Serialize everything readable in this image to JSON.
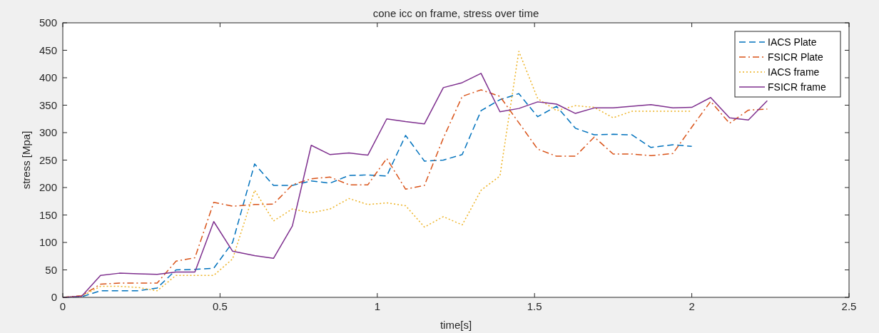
{
  "chart_data": {
    "type": "line",
    "title": "cone icc on frame, stress over time",
    "xlabel": "time[s]",
    "ylabel": "stress [Mpa]",
    "x": [
      0,
      0.06,
      0.12,
      0.18,
      0.24,
      0.3,
      0.36,
      0.42,
      0.48,
      0.54,
      0.61,
      0.67,
      0.73,
      0.79,
      0.85,
      0.91,
      0.97,
      1.03,
      1.09,
      1.15,
      1.21,
      1.27,
      1.33,
      1.39,
      1.45,
      1.51,
      1.57,
      1.63,
      1.69,
      1.75,
      1.81,
      1.87,
      1.94,
      2.0,
      2.06,
      2.12,
      2.18,
      2.24
    ],
    "series": [
      {
        "name": "IACS Plate",
        "color": "#0072bd",
        "line_style": "dashed",
        "values": [
          0,
          1,
          12,
          12,
          12,
          17,
          50,
          51,
          53,
          100,
          243,
          204,
          204,
          212,
          208,
          222,
          223,
          221,
          295,
          248,
          250,
          260,
          340,
          360,
          371,
          329,
          348,
          308,
          296,
          297,
          296,
          273,
          278,
          275,
          null,
          null,
          null,
          null
        ]
      },
      {
        "name": "FSICR Plate",
        "color": "#d95319",
        "line_style": "dashdot",
        "values": [
          0,
          3,
          24,
          26,
          26,
          26,
          66,
          72,
          173,
          166,
          169,
          170,
          205,
          216,
          219,
          205,
          205,
          253,
          197,
          204,
          290,
          366,
          378,
          366,
          318,
          270,
          257,
          257,
          292,
          261,
          261,
          258,
          262,
          310,
          357,
          317,
          341,
          343
        ]
      },
      {
        "name": "IACS frame",
        "color": "#edb120",
        "line_style": "dotted",
        "values": [
          0,
          2,
          20,
          20,
          18,
          12,
          40,
          40,
          40,
          70,
          195,
          139,
          161,
          154,
          161,
          180,
          169,
          172,
          167,
          128,
          147,
          132,
          195,
          221,
          448,
          362,
          340,
          349,
          346,
          327,
          339,
          339,
          339,
          339,
          null,
          null,
          null,
          null
        ]
      },
      {
        "name": "FSICR frame",
        "color": "#7e2f8e",
        "line_style": "solid",
        "values": [
          0,
          2,
          40,
          44,
          43,
          42,
          46,
          46,
          138,
          84,
          76,
          71,
          130,
          277,
          260,
          263,
          259,
          325,
          320,
          316,
          382,
          391,
          408,
          338,
          344,
          356,
          352,
          335,
          345,
          345,
          348,
          351,
          345,
          346,
          364,
          327,
          323,
          358
        ]
      }
    ],
    "xlim": [
      0,
      2.5
    ],
    "xticks": [
      0,
      0.5,
      1,
      1.5,
      2,
      2.5
    ],
    "ylim": [
      0,
      500
    ],
    "yticks": [
      0,
      50,
      100,
      150,
      200,
      250,
      300,
      350,
      400,
      450,
      500
    ],
    "grid": false,
    "legend": "top right"
  }
}
